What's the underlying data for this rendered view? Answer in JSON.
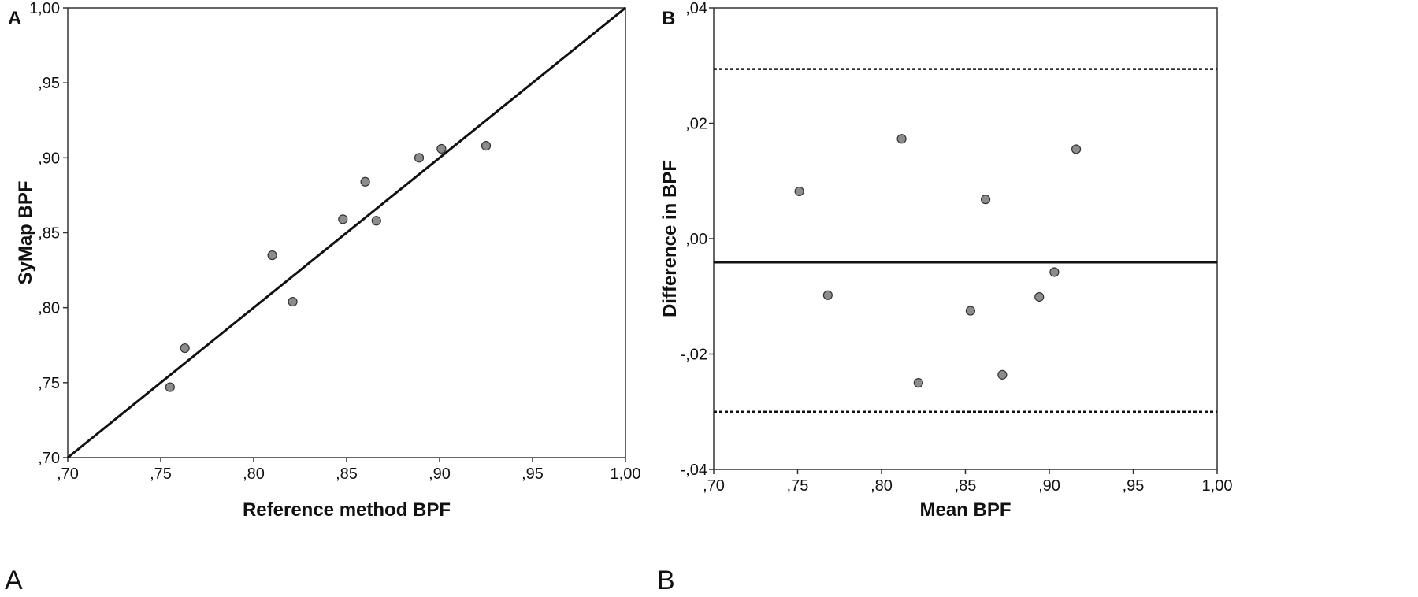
{
  "colors": {
    "point_fill": "#8c8c8c",
    "point_stroke": "#333333",
    "line": "#111111",
    "axis": "#333333"
  },
  "chart_data": [
    {
      "panel": "A",
      "caption_label": "A",
      "type": "scatter",
      "title": "",
      "xlabel": "Reference method BPF",
      "ylabel": "SyMap BPF",
      "xlim": [
        0.7,
        1.0
      ],
      "ylim": [
        0.7,
        1.0
      ],
      "xticks": [
        {
          "value": 0.7,
          "label": ",70"
        },
        {
          "value": 0.75,
          "label": ",75"
        },
        {
          "value": 0.8,
          "label": ",80"
        },
        {
          "value": 0.85,
          "label": ",85"
        },
        {
          "value": 0.9,
          "label": ",90"
        },
        {
          "value": 0.95,
          "label": ",95"
        },
        {
          "value": 1.0,
          "label": "1,00"
        }
      ],
      "yticks": [
        {
          "value": 0.7,
          "label": ",70"
        },
        {
          "value": 0.75,
          "label": ",75"
        },
        {
          "value": 0.8,
          "label": ",80"
        },
        {
          "value": 0.85,
          "label": ",85"
        },
        {
          "value": 0.9,
          "label": ",90"
        },
        {
          "value": 0.95,
          "label": ",95"
        },
        {
          "value": 1.0,
          "label": "1,00"
        }
      ],
      "grid": false,
      "points": [
        {
          "x": 0.755,
          "y": 0.747
        },
        {
          "x": 0.763,
          "y": 0.773
        },
        {
          "x": 0.81,
          "y": 0.835
        },
        {
          "x": 0.821,
          "y": 0.804
        },
        {
          "x": 0.848,
          "y": 0.859
        },
        {
          "x": 0.86,
          "y": 0.884
        },
        {
          "x": 0.866,
          "y": 0.858
        },
        {
          "x": 0.889,
          "y": 0.9
        },
        {
          "x": 0.901,
          "y": 0.906
        },
        {
          "x": 0.925,
          "y": 0.908
        }
      ],
      "lines": [
        {
          "kind": "identity",
          "style": "solid",
          "x": [
            0.7,
            1.0
          ],
          "y": [
            0.7,
            1.0
          ]
        }
      ]
    },
    {
      "panel": "B",
      "caption_label": "B",
      "type": "scatter",
      "title": "",
      "xlabel": "Mean BPF",
      "ylabel": "Difference in BPF",
      "xlim": [
        0.7,
        1.0
      ],
      "ylim": [
        -0.04,
        0.04
      ],
      "xticks": [
        {
          "value": 0.7,
          "label": ",70"
        },
        {
          "value": 0.75,
          "label": ",75"
        },
        {
          "value": 0.8,
          "label": ",80"
        },
        {
          "value": 0.85,
          "label": ",85"
        },
        {
          "value": 0.9,
          "label": ",90"
        },
        {
          "value": 0.95,
          "label": ",95"
        },
        {
          "value": 1.0,
          "label": "1,00"
        }
      ],
      "yticks": [
        {
          "value": -0.04,
          "label": "-,04"
        },
        {
          "value": -0.02,
          "label": "-,02"
        },
        {
          "value": 0.0,
          "label": ",00"
        },
        {
          "value": 0.02,
          "label": ",02"
        },
        {
          "value": 0.04,
          "label": ",04"
        }
      ],
      "grid": false,
      "points": [
        {
          "x": 0.751,
          "y": 0.0082
        },
        {
          "x": 0.768,
          "y": -0.0098
        },
        {
          "x": 0.812,
          "y": 0.0173
        },
        {
          "x": 0.822,
          "y": -0.025
        },
        {
          "x": 0.853,
          "y": -0.0125
        },
        {
          "x": 0.862,
          "y": 0.0068
        },
        {
          "x": 0.872,
          "y": -0.0236
        },
        {
          "x": 0.894,
          "y": -0.0101
        },
        {
          "x": 0.903,
          "y": -0.0058
        },
        {
          "x": 0.916,
          "y": 0.0155
        }
      ],
      "hlines": [
        {
          "kind": "mean-difference",
          "style": "solid",
          "y": -0.0041
        },
        {
          "kind": "upper-limit",
          "style": "dotted",
          "y": 0.0294
        },
        {
          "kind": "lower-limit",
          "style": "dotted",
          "y": -0.03
        }
      ]
    }
  ]
}
